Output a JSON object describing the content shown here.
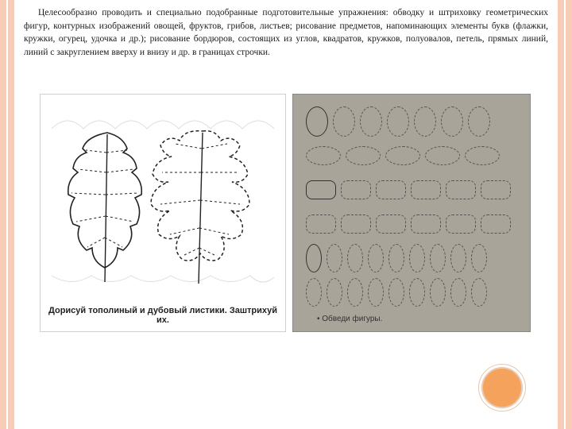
{
  "paragraph": "Целесообразно проводить и специально подобранные подготовительные упражнения: обводку и штриховку геометрических фигур, контурных изображений овощей, фруктов, грибов, листьев; рисование предметов, напоминающих элементы букв (флажки, кружки, огурец, удочка и др.); рисование бордюров, состоящих из углов, квадратов, кружков, полуовалов, петель, прямых линий, линий с закруглением вверху и внизу и др. в границах строчки.",
  "figLeft": {
    "caption": "Дорисуй тополиный и дубовый листики. Заштрихуй их."
  },
  "figRight": {
    "caption": "• Обведи фигуры.",
    "rows": [
      {
        "type": "oval-v",
        "count": 7,
        "firstSolid": true
      },
      {
        "type": "oval-h",
        "count": 5,
        "firstSolid": false
      },
      {
        "type": "rrect",
        "count": 6,
        "firstSolid": true
      },
      {
        "type": "rrect",
        "count": 6,
        "firstSolid": false
      },
      {
        "type": "oval-narrow",
        "count": 9,
        "firstSolid": true
      },
      {
        "type": "oval-narrow",
        "count": 9,
        "firstSolid": false
      }
    ]
  },
  "colors": {
    "stripe": "#f8cdb8",
    "circle": "#f5a35c",
    "paperGray": "#a8a49a"
  }
}
